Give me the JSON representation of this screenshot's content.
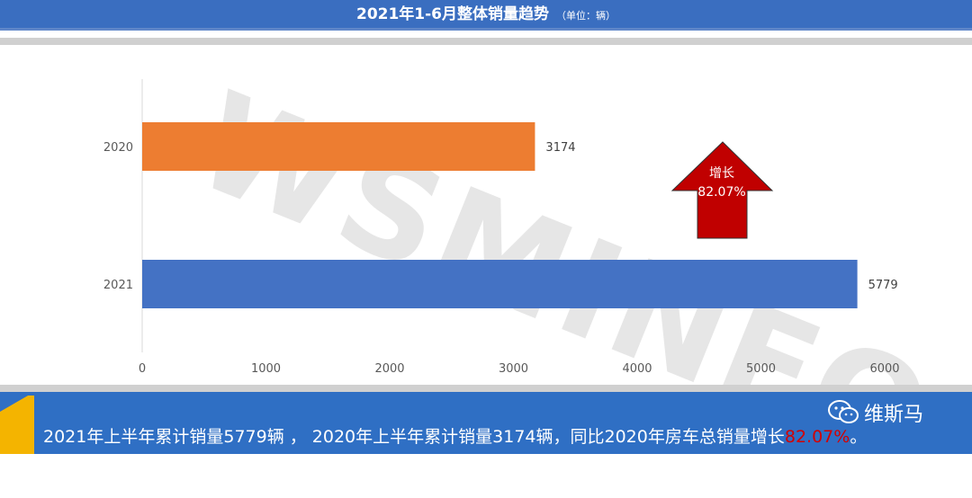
{
  "header": {
    "title": "2021年1-6月整体销量趋势",
    "unit": "（单位：辆）"
  },
  "watermark": "WSMINFO",
  "chart_data": {
    "type": "bar",
    "orientation": "horizontal",
    "categories": [
      "2020",
      "2021"
    ],
    "values": [
      3174,
      5779
    ],
    "colors": [
      "#ed7d31",
      "#4472c4"
    ],
    "xlim": [
      0,
      6000
    ],
    "xticks": [
      "0",
      "1000",
      "2000",
      "3000",
      "4000",
      "5000",
      "6000"
    ],
    "data_labels": [
      "3174",
      "5779"
    ],
    "annotation": {
      "line1": "增长",
      "line2": "82.07%",
      "color": "#c00000"
    }
  },
  "footer": {
    "text_before": "2021年上半年累计销量5779辆 ， 2020年上半年累计销量3174辆，同比2020年房车总销量增长",
    "highlight": "82.07%",
    "text_after": "。",
    "brand": "维斯马",
    "brand_icon": "wechat-icon"
  }
}
